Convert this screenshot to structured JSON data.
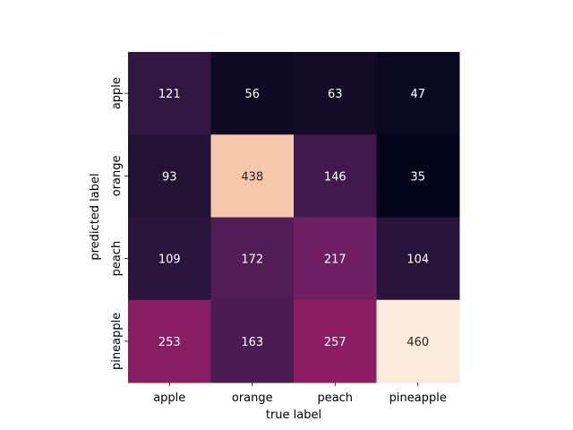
{
  "chart_data": {
    "type": "heatmap",
    "title": "",
    "xlabel": "true label",
    "ylabel": "predicted label",
    "x_categories": [
      "apple",
      "orange",
      "peach",
      "pineapple"
    ],
    "y_categories": [
      "apple",
      "orange",
      "peach",
      "pineapple"
    ],
    "values": [
      [
        121,
        56,
        63,
        47
      ],
      [
        93,
        438,
        146,
        35
      ],
      [
        109,
        172,
        217,
        104
      ],
      [
        253,
        163,
        257,
        460
      ]
    ],
    "colormap": "rocket",
    "colorbar": false,
    "annotations": true,
    "grid": false
  }
}
